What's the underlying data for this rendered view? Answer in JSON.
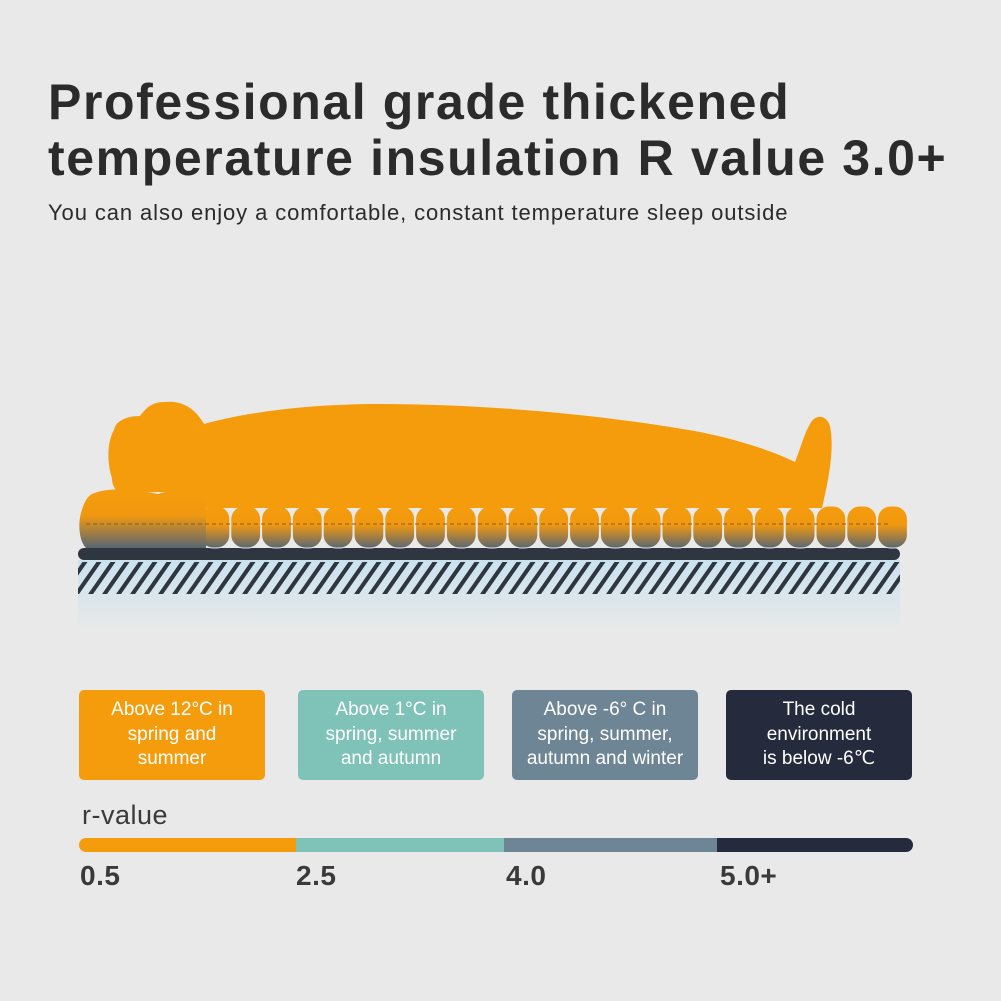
{
  "header": {
    "title": "Professional grade thickened temperature insulation R value 3.0+",
    "subtitle": "You can also enjoy a comfortable, constant temperature sleep outside"
  },
  "illustration": {
    "body_color": "#f59c0d",
    "ground_color": "#2f3640",
    "insulation_color": "#c9e3ee"
  },
  "seasons": [
    {
      "label": "Above 12°C in\nspring and\nsummer",
      "color": "#f59c0d"
    },
    {
      "label": "Above 1°C in\nspring, summer\nand autumn",
      "color": "#7ec2b8"
    },
    {
      "label": "Above -6° C in\nspring, summer,\nautumn and winter",
      "color": "#6d8595"
    },
    {
      "label": "The cold\nenvironment\nis below -6℃",
      "color": "#252b3d"
    }
  ],
  "rvalue": {
    "label": "r-value",
    "ticks": [
      "0.5",
      "2.5",
      "4.0",
      "5.0+"
    ],
    "segments": [
      {
        "fraction": 0.26,
        "color": "#f59c0d"
      },
      {
        "fraction": 0.25,
        "color": "#7ec2b8"
      },
      {
        "fraction": 0.255,
        "color": "#6d8595"
      },
      {
        "fraction": 0.235,
        "color": "#252b3d"
      }
    ]
  }
}
